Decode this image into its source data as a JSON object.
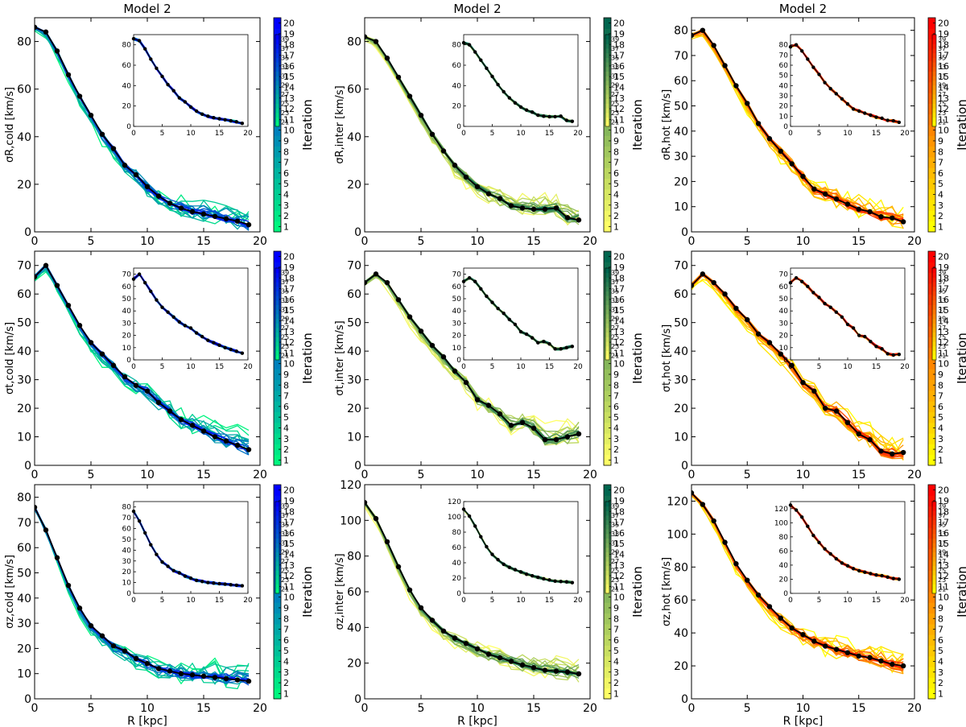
{
  "figure": {
    "title_model": "Model 2",
    "cbar_label": "Iteration",
    "xlabel": "R [kpc]",
    "main_cbar_ticks": [
      "1",
      "2",
      "3",
      "4",
      "5",
      "6",
      "7",
      "8",
      "9",
      "10",
      "11",
      "12",
      "13",
      "14",
      "15",
      "16",
      "17",
      "18",
      "19",
      "20"
    ],
    "inset_cbar_ticks": [
      "21",
      "23",
      "25",
      "27",
      "29",
      "31",
      "33",
      "35",
      "37",
      "39"
    ]
  },
  "colormaps": {
    "cold": {
      "start": "#00f57f",
      "end": "#0000ff"
    },
    "inter": {
      "start": "#ffff66",
      "end": "#00664f"
    },
    "hot": {
      "start": "#ffff00",
      "end": "#ff0000"
    }
  },
  "chart_data": [
    {
      "id": "sR_cold",
      "type": "line",
      "ylabel": "σR,cold [km/s]",
      "xlim": [
        0,
        20
      ],
      "ylim": [
        0,
        90
      ],
      "yticks": [
        0,
        20,
        40,
        60,
        80
      ],
      "xticks": [
        0,
        5,
        10,
        15,
        20
      ],
      "cmap": "cold",
      "title": "Model 2",
      "final_x": [
        0,
        1,
        2,
        3,
        4,
        5,
        6,
        7,
        8,
        9,
        10,
        11,
        12,
        13,
        14,
        15,
        16,
        17,
        18,
        19
      ],
      "final_y": [
        86,
        84,
        76,
        66,
        57,
        49,
        41,
        35,
        28,
        24,
        19,
        15,
        12,
        10,
        8.5,
        7.5,
        6.5,
        5.5,
        4.5,
        3
      ],
      "inset": {
        "ylim": [
          0,
          90
        ],
        "yticks": [
          0,
          20,
          40,
          60,
          80
        ],
        "xticks": [
          0,
          5,
          10,
          15,
          20
        ],
        "xlim": [
          0,
          20
        ]
      }
    },
    {
      "id": "sR_inter",
      "type": "line",
      "ylabel": "σR,inter [km/s]",
      "xlim": [
        0,
        20
      ],
      "ylim": [
        0,
        90
      ],
      "yticks": [
        0,
        20,
        40,
        60,
        80
      ],
      "xticks": [
        0,
        5,
        10,
        15,
        20
      ],
      "cmap": "inter",
      "title": "Model 2",
      "final_x": [
        0,
        1,
        2,
        3,
        4,
        5,
        6,
        7,
        8,
        9,
        10,
        11,
        12,
        13,
        14,
        15,
        16,
        17,
        18,
        19
      ],
      "final_y": [
        82,
        80,
        73,
        65,
        57,
        49,
        41,
        34,
        28,
        23,
        19,
        16,
        14,
        11,
        10,
        9.5,
        9.5,
        10,
        6,
        5
      ],
      "inset": {
        "ylim": [
          0,
          90
        ],
        "yticks": [
          0,
          20,
          40,
          60,
          80
        ],
        "xticks": [
          0,
          5,
          10,
          15,
          20
        ],
        "xlim": [
          0,
          20
        ]
      }
    },
    {
      "id": "sR_hot",
      "type": "line",
      "ylabel": "σR,hot [km/s]",
      "xlim": [
        0,
        20
      ],
      "ylim": [
        0,
        85
      ],
      "yticks": [
        0,
        10,
        20,
        30,
        40,
        50,
        60,
        70,
        80
      ],
      "xticks": [
        0,
        5,
        10,
        15,
        20
      ],
      "cmap": "hot",
      "title": "Model 2",
      "final_x": [
        0,
        1,
        2,
        3,
        4,
        5,
        6,
        7,
        8,
        9,
        10,
        11,
        12,
        13,
        14,
        15,
        16,
        17,
        18,
        19
      ],
      "final_y": [
        78,
        80,
        74,
        66,
        58,
        51,
        43,
        37,
        32,
        27,
        22,
        17,
        15,
        13,
        11,
        9,
        8,
        6,
        5.5,
        4
      ],
      "inset": {
        "ylim": [
          0,
          90
        ],
        "yticks": [
          0,
          10,
          20,
          30,
          40,
          50,
          60,
          70,
          80
        ],
        "xticks": [
          0,
          5,
          10,
          15,
          20
        ],
        "xlim": [
          0,
          20
        ]
      }
    },
    {
      "id": "st_cold",
      "type": "line",
      "ylabel": "σt,cold [km/s]",
      "xlim": [
        0,
        20
      ],
      "ylim": [
        0,
        75
      ],
      "yticks": [
        0,
        10,
        20,
        30,
        40,
        50,
        60,
        70
      ],
      "xticks": [
        0,
        5,
        10,
        15,
        20
      ],
      "cmap": "cold",
      "title": "",
      "final_x": [
        0,
        1,
        2,
        3,
        4,
        5,
        6,
        7,
        8,
        9,
        10,
        11,
        12,
        13,
        14,
        15,
        16,
        17,
        18,
        19
      ],
      "final_y": [
        66,
        70,
        63,
        56,
        49,
        43,
        39,
        35,
        31,
        28,
        26,
        22,
        19,
        16,
        14,
        12,
        10,
        8.5,
        7,
        5.5
      ],
      "inset": {
        "ylim": [
          0,
          75
        ],
        "yticks": [
          0,
          10,
          20,
          30,
          40,
          50,
          60,
          70
        ],
        "xticks": [
          0,
          5,
          10,
          15,
          20
        ],
        "xlim": [
          0,
          20
        ]
      }
    },
    {
      "id": "st_inter",
      "type": "line",
      "ylabel": "σt,inter [km/s]",
      "xlim": [
        0,
        20
      ],
      "ylim": [
        0,
        75
      ],
      "yticks": [
        0,
        10,
        20,
        30,
        40,
        50,
        60,
        70
      ],
      "xticks": [
        0,
        5,
        10,
        15,
        20
      ],
      "cmap": "inter",
      "title": "",
      "final_x": [
        0,
        1,
        2,
        3,
        4,
        5,
        6,
        7,
        8,
        9,
        10,
        11,
        12,
        13,
        14,
        15,
        16,
        17,
        18,
        19
      ],
      "final_y": [
        64,
        67,
        64,
        58,
        52,
        47,
        42,
        38,
        33,
        29,
        23,
        21,
        18,
        14,
        15,
        13,
        9,
        9,
        10,
        11
      ],
      "inset": {
        "ylim": [
          0,
          75
        ],
        "yticks": [
          0,
          10,
          20,
          30,
          40,
          50,
          60,
          70
        ],
        "xticks": [
          0,
          5,
          10,
          15,
          20
        ],
        "xlim": [
          0,
          20
        ]
      }
    },
    {
      "id": "st_hot",
      "type": "line",
      "ylabel": "σt,hot [km/s]",
      "xlim": [
        0,
        20
      ],
      "ylim": [
        0,
        75
      ],
      "yticks": [
        0,
        10,
        20,
        30,
        40,
        50,
        60,
        70
      ],
      "xticks": [
        0,
        5,
        10,
        15,
        20
      ],
      "cmap": "hot",
      "title": "",
      "final_x": [
        0,
        1,
        2,
        3,
        4,
        5,
        6,
        7,
        8,
        9,
        10,
        11,
        12,
        13,
        14,
        15,
        16,
        17,
        18,
        19
      ],
      "final_y": [
        63,
        67,
        64,
        60,
        55,
        51,
        46,
        43,
        39,
        35,
        29,
        26,
        20,
        19,
        15,
        11,
        9,
        5,
        4,
        4.5
      ],
      "inset": {
        "ylim": [
          0,
          75
        ],
        "yticks": [
          0,
          10,
          20,
          30,
          40,
          50,
          60,
          70
        ],
        "xticks": [
          0,
          5,
          10,
          15,
          20
        ],
        "xlim": [
          0,
          20
        ]
      }
    },
    {
      "id": "sz_cold",
      "type": "line",
      "ylabel": "σz,cold [km/s]",
      "xlim": [
        0,
        20
      ],
      "ylim": [
        0,
        85
      ],
      "yticks": [
        0,
        10,
        20,
        30,
        40,
        50,
        60,
        70,
        80
      ],
      "xticks": [
        0,
        5,
        10,
        15,
        20
      ],
      "cmap": "cold",
      "title": "",
      "final_x": [
        0,
        1,
        2,
        3,
        4,
        5,
        6,
        7,
        8,
        9,
        10,
        11,
        12,
        13,
        14,
        15,
        16,
        17,
        18,
        19
      ],
      "final_y": [
        76,
        67,
        56,
        45,
        36,
        29,
        25,
        21,
        19,
        16,
        14,
        12,
        11,
        10,
        9.5,
        9,
        8.5,
        8,
        7.5,
        7
      ],
      "inset": {
        "ylim": [
          0,
          85
        ],
        "yticks": [
          0,
          10,
          20,
          30,
          40,
          50,
          60,
          70,
          80
        ],
        "xticks": [
          0,
          5,
          10,
          15,
          20
        ],
        "xlim": [
          0,
          20
        ]
      }
    },
    {
      "id": "sz_inter",
      "type": "line",
      "ylabel": "σz,inter [km/s]",
      "xlim": [
        0,
        20
      ],
      "ylim": [
        0,
        120
      ],
      "yticks": [
        0,
        20,
        40,
        60,
        80,
        100,
        120
      ],
      "xticks": [
        0,
        5,
        10,
        15,
        20
      ],
      "cmap": "inter",
      "title": "",
      "final_x": [
        0,
        1,
        2,
        3,
        4,
        5,
        6,
        7,
        8,
        9,
        10,
        11,
        12,
        13,
        14,
        15,
        16,
        17,
        18,
        19
      ],
      "final_y": [
        110,
        101,
        88,
        74,
        61,
        51,
        44,
        38,
        34,
        31,
        28,
        25,
        23,
        21,
        19,
        17.5,
        16,
        15.5,
        15,
        14
      ],
      "inset": {
        "ylim": [
          0,
          120
        ],
        "yticks": [
          0,
          20,
          40,
          60,
          80,
          100,
          120
        ],
        "xticks": [
          0,
          5,
          10,
          15,
          20
        ],
        "xlim": [
          0,
          20
        ]
      }
    },
    {
      "id": "sz_hot",
      "type": "line",
      "ylabel": "σz,hot [km/s]",
      "xlim": [
        0,
        20
      ],
      "ylim": [
        0,
        130
      ],
      "yticks": [
        0,
        20,
        40,
        60,
        80,
        100,
        120
      ],
      "xticks": [
        0,
        5,
        10,
        15,
        20
      ],
      "cmap": "hot",
      "title": "",
      "final_x": [
        0,
        1,
        2,
        3,
        4,
        5,
        6,
        7,
        8,
        9,
        10,
        11,
        12,
        13,
        14,
        15,
        16,
        17,
        18,
        19
      ],
      "final_y": [
        125,
        118,
        108,
        95,
        82,
        72,
        63,
        56,
        49,
        43,
        39,
        35,
        32,
        30,
        28,
        26,
        25,
        23,
        21,
        20
      ],
      "inset": {
        "ylim": [
          0,
          130
        ],
        "yticks": [
          0,
          20,
          40,
          60,
          80,
          100,
          120
        ],
        "xticks": [
          0,
          5,
          10,
          15,
          20
        ],
        "xlim": [
          0,
          20
        ]
      }
    }
  ]
}
